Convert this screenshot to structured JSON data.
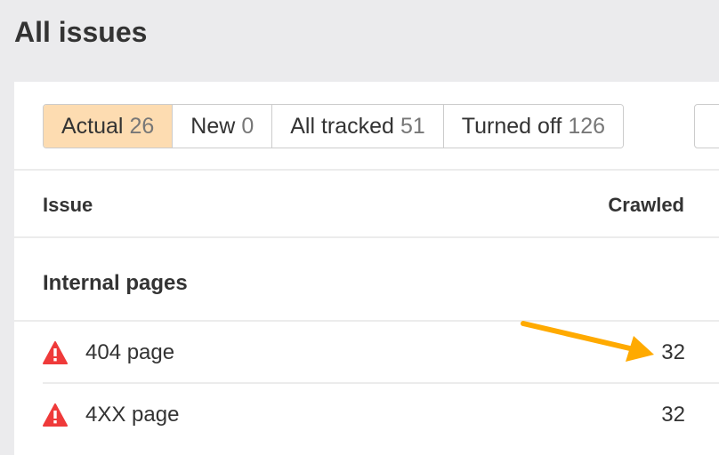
{
  "page_title": "All issues",
  "tabs": [
    {
      "label": "Actual",
      "count": "26",
      "active": true
    },
    {
      "label": "New",
      "count": "0"
    },
    {
      "label": "All tracked",
      "count": "51"
    },
    {
      "label": "Turned off",
      "count": "126"
    }
  ],
  "table": {
    "columns": {
      "issue": "Issue",
      "crawled": "Crawled"
    },
    "group": "Internal pages",
    "rows": [
      {
        "icon": "warning-icon",
        "issue": "404 page",
        "crawled": "32"
      },
      {
        "icon": "warning-icon",
        "issue": "4XX page",
        "crawled": "32"
      }
    ]
  },
  "colors": {
    "active_tab": "#fddcb1",
    "warning": "#ef3a3a",
    "annotation_arrow": "#ffaa00"
  }
}
